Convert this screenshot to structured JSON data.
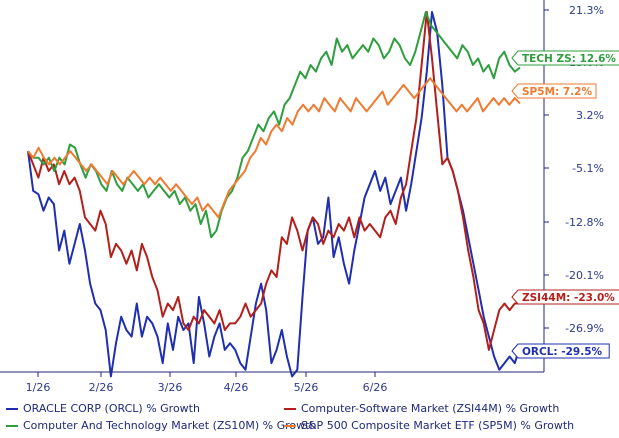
{
  "chart_data": {
    "type": "line",
    "x_ticks": [
      "1/26",
      "2/26",
      "3/26",
      "4/26",
      "5/26",
      "6/26"
    ],
    "y_ticks": [
      "21.3%",
      "13.6%",
      "3.2%",
      "-5.1%",
      "-12.8%",
      "-20.1%",
      "-26.9%"
    ],
    "ylim": [
      -35,
      21.3
    ],
    "grid": false,
    "callouts": [
      {
        "label": "TECH ZS: 12.6%",
        "value": 12.6,
        "color": "#2e9e3e"
      },
      {
        "label": "SP5M: 7.2%",
        "value": 7.2,
        "color": "#f07a30"
      },
      {
        "label": "ZSI44M: -23.0%",
        "value": -23.0,
        "color": "#b3201c"
      },
      {
        "label": "ORCL: -29.5%",
        "value": -29.5,
        "color": "#1f2fb0"
      }
    ],
    "series": [
      {
        "name": "ORACLE CORP (ORCL) % Growth",
        "color": "#1f2fb0",
        "values": [
          0.0,
          -6.0,
          -6.5,
          -9.0,
          -7.0,
          -8.0,
          -15.0,
          -12.0,
          -17.0,
          -14.0,
          -11.0,
          -15.0,
          -20.0,
          -23.0,
          -24.0,
          -27.0,
          -34.0,
          -29.0,
          -25.0,
          -27.0,
          -28.0,
          -23.0,
          -28.0,
          -25.0,
          -26.0,
          -28.0,
          -32.0,
          -26.0,
          -30.0,
          -25.0,
          -27.0,
          -26.0,
          -32.0,
          -22.0,
          -26.0,
          -31.0,
          -28.0,
          -26.0,
          -30.0,
          -29.0,
          -30.0,
          -32.0,
          -33.0,
          -28.0,
          -23.0,
          -20.0,
          -24.0,
          -32.0,
          -30.0,
          -27.0,
          -31.0,
          -34.0,
          -33.0,
          -22.0,
          -12.0,
          -10.0,
          -14.0,
          -13.0,
          -7.0,
          -16.0,
          -13.0,
          -17.0,
          -20.0,
          -15.0,
          -11.0,
          -7.0,
          -5.0,
          -3.0,
          -6.0,
          -4.0,
          -8.0,
          -6.0,
          -4.0,
          -9.0,
          -5.0,
          0.0,
          5.0,
          12.0,
          21.0,
          18.0,
          10.0,
          -1.0,
          -3.0,
          -6.0,
          -9.0,
          -13.0,
          -17.0,
          -21.0,
          -25.0,
          -28.0,
          -31.0,
          -33.0,
          -32.0,
          -31.0,
          -32.0,
          -29.5
        ]
      },
      {
        "name": "Computer-Software Market (ZSI44M) % Growth",
        "color": "#b3201c",
        "values": [
          0.0,
          -2.0,
          -4.0,
          -1.0,
          -3.0,
          -2.0,
          -5.0,
          -3.0,
          -5.0,
          -4.0,
          -6.0,
          -10.0,
          -11.0,
          -12.0,
          -9.0,
          -11.0,
          -16.0,
          -14.0,
          -15.0,
          -17.0,
          -15.0,
          -18.0,
          -14.0,
          -16.0,
          -19.0,
          -21.0,
          -25.0,
          -23.0,
          -24.0,
          -22.0,
          -26.0,
          -27.0,
          -25.0,
          -26.0,
          -24.0,
          -25.0,
          -26.0,
          -24.0,
          -27.0,
          -26.0,
          -26.0,
          -25.0,
          -23.0,
          -25.0,
          -24.0,
          -23.0,
          -20.0,
          -18.0,
          -19.0,
          -13.0,
          -14.0,
          -10.0,
          -12.0,
          -15.0,
          -12.0,
          -10.0,
          -11.0,
          -14.0,
          -12.0,
          -13.0,
          -11.0,
          -12.0,
          -10.0,
          -13.0,
          -10.0,
          -12.0,
          -11.0,
          -12.0,
          -13.0,
          -10.0,
          -9.0,
          -11.0,
          -7.0,
          -5.0,
          0.0,
          5.0,
          13.0,
          21.0,
          14.0,
          6.0,
          -2.0,
          -1.0,
          -3.0,
          -6.0,
          -10.0,
          -15.0,
          -19.0,
          -24.0,
          -26.0,
          -30.0,
          -27.0,
          -24.0,
          -23.0,
          -24.0,
          -23.0,
          -23.0
        ]
      },
      {
        "name": "Computer And Technology Market (ZS10M) % Growth",
        "color": "#2e9e3e",
        "values": [
          0.0,
          -1.0,
          -1.0,
          -2.0,
          -1.0,
          -3.0,
          -1.0,
          -2.0,
          1.0,
          0.5,
          -2.0,
          -4.0,
          -2.0,
          -3.0,
          -5.0,
          -6.0,
          -3.0,
          -5.0,
          -6.0,
          -4.0,
          -5.0,
          -6.0,
          -5.0,
          -7.0,
          -6.0,
          -5.0,
          -6.0,
          -7.0,
          -6.0,
          -8.0,
          -7.0,
          -9.0,
          -8.0,
          -11.0,
          -9.0,
          -13.0,
          -12.0,
          -9.0,
          -7.0,
          -6.0,
          -4.0,
          -1.0,
          0.0,
          2.0,
          4.0,
          3.0,
          5.0,
          6.0,
          4.0,
          7.0,
          8.0,
          10.0,
          12.0,
          11.0,
          13.0,
          12.0,
          14.0,
          15.0,
          13.0,
          17.0,
          15.0,
          16.0,
          14.0,
          15.0,
          16.0,
          15.0,
          17.0,
          16.0,
          14.0,
          15.0,
          17.0,
          16.0,
          14.0,
          13.0,
          15.0,
          18.0,
          21.0,
          19.0,
          18.0,
          17.0,
          16.0,
          15.0,
          14.0,
          16.0,
          15.0,
          13.0,
          14.0,
          12.0,
          13.0,
          11.0,
          14.0,
          15.0,
          13.0,
          12.0,
          12.6
        ]
      },
      {
        "name": "S&P 500 Composite Market ETF (SP5M) % Growth",
        "color": "#f07a30",
        "values": [
          0.0,
          -1.0,
          0.5,
          -1.0,
          -2.0,
          -1.0,
          -2.0,
          -1.0,
          0.0,
          -1.0,
          -2.0,
          -3.0,
          -2.0,
          -3.0,
          -4.0,
          -5.0,
          -3.0,
          -4.0,
          -5.0,
          -4.0,
          -3.0,
          -4.0,
          -5.0,
          -4.0,
          -5.0,
          -4.0,
          -5.0,
          -6.0,
          -5.0,
          -6.0,
          -7.0,
          -8.0,
          -7.0,
          -9.0,
          -8.0,
          -9.0,
          -10.0,
          -8.0,
          -6.0,
          -5.0,
          -4.0,
          -3.0,
          -1.0,
          0.0,
          2.0,
          1.0,
          3.0,
          4.0,
          3.0,
          5.0,
          4.0,
          6.0,
          7.0,
          6.0,
          7.0,
          6.0,
          8.0,
          7.0,
          6.0,
          8.0,
          7.0,
          6.0,
          8.0,
          7.0,
          6.0,
          7.0,
          8.0,
          9.0,
          7.0,
          8.0,
          9.0,
          10.0,
          9.0,
          8.0,
          9.0,
          10.0,
          11.0,
          10.0,
          9.0,
          8.0,
          7.0,
          6.0,
          7.0,
          6.0,
          7.0,
          8.0,
          6.0,
          7.0,
          8.0,
          7.0,
          8.0,
          7.0,
          8.0,
          7.2
        ]
      }
    ]
  }
}
